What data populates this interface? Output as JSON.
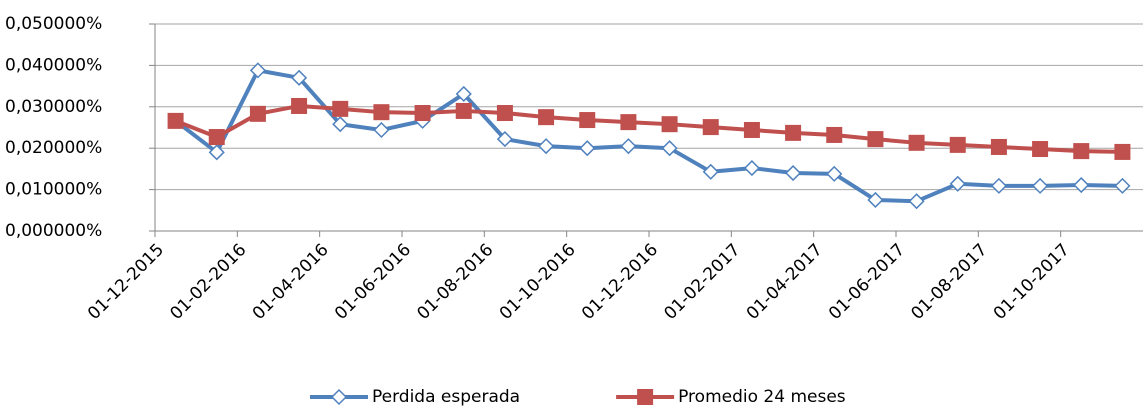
{
  "chart_data": {
    "type": "line",
    "categories": [
      "01-12-2015",
      null,
      "01-02-2016",
      null,
      "01-04-2016",
      null,
      "01-06-2016",
      null,
      "01-08-2016",
      null,
      "01-10-2016",
      null,
      "01-12-2016",
      null,
      "01-02-2017",
      null,
      "01-04-2017",
      null,
      "01-06-2017",
      null,
      "01-08-2017",
      null,
      "01-10-2017",
      null
    ],
    "series": [
      {
        "name": "Perdida esperada",
        "color": "#4f81bd",
        "marker": "diamond",
        "values": [
          0.0266,
          0.019,
          0.0388,
          0.037,
          0.0258,
          0.0244,
          0.0266,
          0.0331,
          0.0222,
          0.0205,
          0.02,
          0.0205,
          0.02,
          0.0143,
          0.0152,
          0.014,
          0.0138,
          0.0075,
          0.0072,
          0.0114,
          0.0109,
          0.0109,
          0.0111,
          0.0109
        ]
      },
      {
        "name": "Promedio 24 meses",
        "color": "#c0504d",
        "marker": "square",
        "values": [
          0.0266,
          0.0227,
          0.0283,
          0.0302,
          0.0295,
          0.0287,
          0.0285,
          0.029,
          0.0285,
          0.0275,
          0.0268,
          0.0263,
          0.0258,
          0.0251,
          0.0244,
          0.0237,
          0.0232,
          0.0222,
          0.0213,
          0.0208,
          0.0203,
          0.0198,
          0.0193,
          0.0191
        ]
      }
    ],
    "ylim": [
      0,
      0.05
    ],
    "yticks": [
      {
        "value": 0,
        "label": "0,000000%"
      },
      {
        "value": 0.01,
        "label": "0,010000%"
      },
      {
        "value": 0.02,
        "label": "0,020000%"
      },
      {
        "value": 0.03,
        "label": "0,030000%"
      },
      {
        "value": 0.04,
        "label": "0,040000%"
      },
      {
        "value": 0.05,
        "label": "0,050000%"
      }
    ],
    "grid": true,
    "legend": "bottom"
  }
}
